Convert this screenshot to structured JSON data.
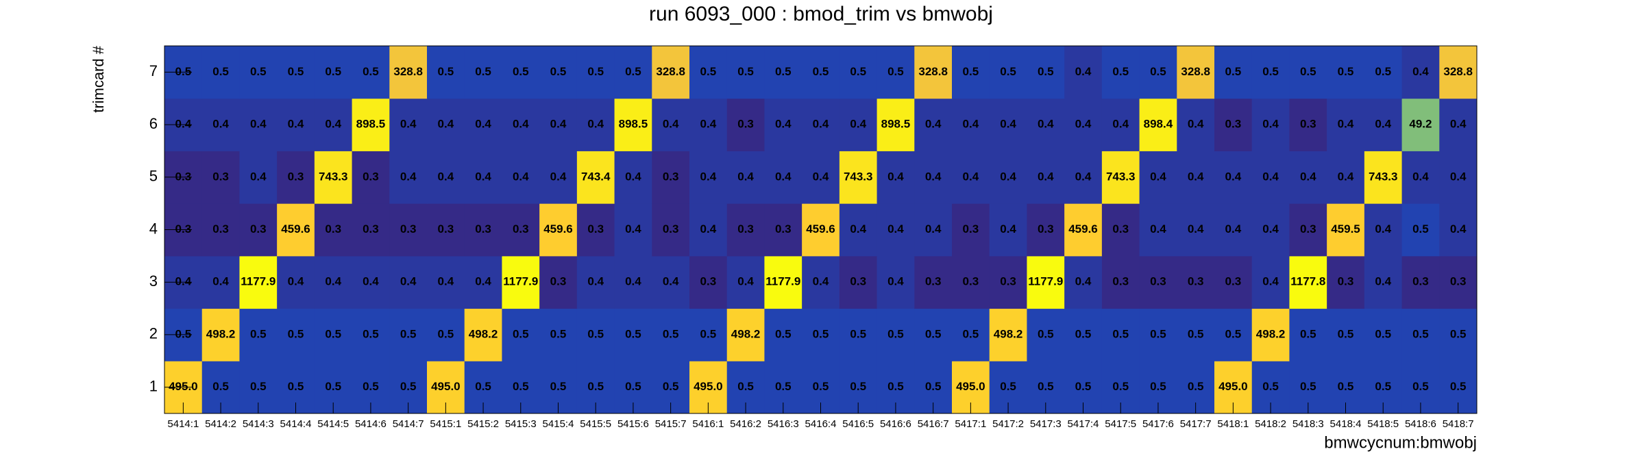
{
  "chart_data": {
    "type": "heatmap",
    "title": "run 6093_000 : bmod_trim vs bmwobj",
    "x_label": "bmwcycnum:bmwobj",
    "y_label": "trimcard #",
    "log_z": true,
    "palette": [
      "#352a87",
      "#0f5cdd",
      "#1481d6",
      "#06a4ca",
      "#2eb7a4",
      "#87bf77",
      "#d1bb59",
      "#fec832",
      "#f9fb0e"
    ],
    "categories": [
      "5414:1",
      "5414:2",
      "5414:3",
      "5414:4",
      "5414:5",
      "5414:6",
      "5414:7",
      "5415:1",
      "5415:2",
      "5415:3",
      "5415:4",
      "5415:5",
      "5415:6",
      "5415:7",
      "5416:1",
      "5416:2",
      "5416:3",
      "5416:4",
      "5416:5",
      "5416:6",
      "5416:7",
      "5417:1",
      "5417:2",
      "5417:3",
      "5417:4",
      "5417:5",
      "5417:6",
      "5417:7",
      "5418:1",
      "5418:2",
      "5418:3",
      "5418:4",
      "5418:5",
      "5418:6",
      "5418:7"
    ],
    "series": [
      {
        "name": "1",
        "values": [
          495,
          0.5,
          0.5,
          0.5,
          0.5,
          0.5,
          0.5,
          495,
          0.5,
          0.5,
          0.5,
          0.5,
          0.5,
          0.5,
          495,
          0.5,
          0.5,
          0.5,
          0.5,
          0.5,
          0.5,
          495,
          0.5,
          0.5,
          0.5,
          0.5,
          0.5,
          0.5,
          495,
          0.5,
          0.5,
          0.5,
          0.5,
          0.5,
          0.5
        ],
        "value_labels": [
          "495.0",
          "0.5",
          "0.5",
          "0.5",
          "0.5",
          "0.5",
          "0.5",
          "495.0",
          "0.5",
          "0.5",
          "0.5",
          "0.5",
          "0.5",
          "0.5",
          "495.0",
          "0.5",
          "0.5",
          "0.5",
          "0.5",
          "0.5",
          "0.5",
          "495.0",
          "0.5",
          "0.5",
          "0.5",
          "0.5",
          "0.5",
          "0.5",
          "495.0",
          "0.5",
          "0.5",
          "0.5",
          "0.5",
          "0.5",
          "0.5"
        ]
      },
      {
        "name": "2",
        "values": [
          0.5,
          498.2,
          0.5,
          0.5,
          0.5,
          0.5,
          0.5,
          0.5,
          498.2,
          0.5,
          0.5,
          0.5,
          0.5,
          0.5,
          0.5,
          498.2,
          0.5,
          0.5,
          0.5,
          0.5,
          0.5,
          0.5,
          498.2,
          0.5,
          0.5,
          0.5,
          0.5,
          0.5,
          0.5,
          498.2,
          0.5,
          0.5,
          0.5,
          0.5,
          0.5
        ]
      },
      {
        "name": "3",
        "values": [
          0.4,
          0.4,
          1177.9,
          0.4,
          0.4,
          0.4,
          0.4,
          0.4,
          0.4,
          1177.9,
          0.3,
          0.4,
          0.4,
          0.4,
          0.3,
          0.4,
          1177.9,
          0.4,
          0.3,
          0.4,
          0.3,
          0.3,
          0.3,
          1177.9,
          0.4,
          0.3,
          0.3,
          0.3,
          0.3,
          0.4,
          1177.8,
          0.3,
          0.4,
          0.3,
          0.3
        ]
      },
      {
        "name": "4",
        "values": [
          0.3,
          0.3,
          0.3,
          459.6,
          0.3,
          0.3,
          0.3,
          0.3,
          0.3,
          0.3,
          459.6,
          0.3,
          0.4,
          0.3,
          0.4,
          0.3,
          0.3,
          459.6,
          0.4,
          0.4,
          0.4,
          0.3,
          0.4,
          0.3,
          459.6,
          0.3,
          0.4,
          0.4,
          0.4,
          0.4,
          0.3,
          459.5,
          0.4,
          0.5,
          0.4
        ]
      },
      {
        "name": "5",
        "values": [
          0.3,
          0.3,
          0.4,
          0.3,
          743.3,
          0.3,
          0.4,
          0.4,
          0.4,
          0.4,
          0.4,
          743.4,
          0.4,
          0.3,
          0.4,
          0.4,
          0.4,
          0.4,
          743.3,
          0.4,
          0.4,
          0.4,
          0.4,
          0.4,
          0.4,
          743.3,
          0.4,
          0.4,
          0.4,
          0.4,
          0.4,
          0.4,
          743.3,
          0.4,
          0.4
        ]
      },
      {
        "name": "6",
        "values": [
          0.4,
          0.4,
          0.4,
          0.4,
          0.4,
          898.5,
          0.4,
          0.4,
          0.4,
          0.4,
          0.4,
          0.4,
          898.5,
          0.4,
          0.4,
          0.3,
          0.4,
          0.4,
          0.4,
          898.5,
          0.4,
          0.4,
          0.4,
          0.4,
          0.4,
          0.4,
          898.4,
          0.4,
          0.3,
          0.4,
          0.3,
          0.4,
          0.4,
          49.2,
          0.4
        ]
      },
      {
        "name": "7",
        "values": [
          0.5,
          0.5,
          0.5,
          0.5,
          0.5,
          0.5,
          328.8,
          0.5,
          0.5,
          0.5,
          0.5,
          0.5,
          0.5,
          328.8,
          0.5,
          0.5,
          0.5,
          0.5,
          0.5,
          0.5,
          328.8,
          0.5,
          0.5,
          0.5,
          0.4,
          0.5,
          0.5,
          328.8,
          0.5,
          0.5,
          0.5,
          0.5,
          0.5,
          0.4,
          328.8
        ]
      }
    ]
  }
}
